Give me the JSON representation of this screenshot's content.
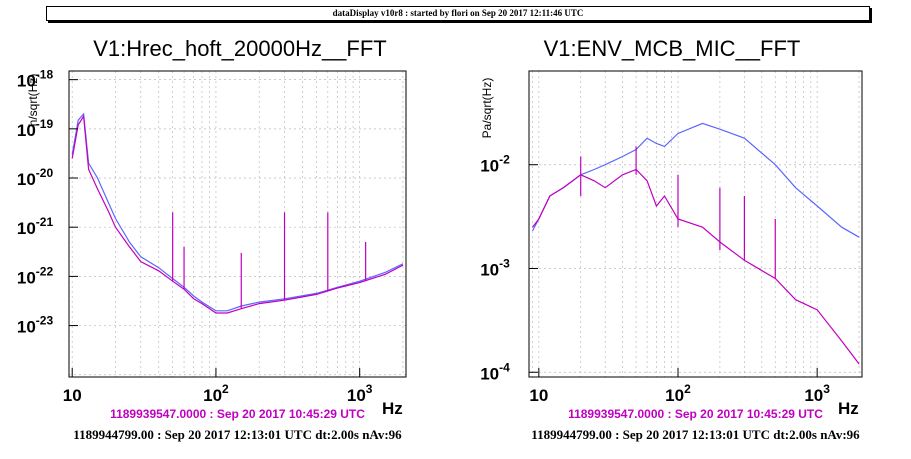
{
  "banner": "dataDisplay v10r8 : started by flori on Sep 20 2017 12:11:46 UTC",
  "colors": {
    "magenta": "#c000c0",
    "blue": "#5a66ff"
  },
  "chart_data": [
    {
      "type": "line",
      "title": "V1:Hrec_hoft_20000Hz__FFT",
      "ylabel": "h/sqrt(Hz)",
      "xlabel": "Hz",
      "xscale": "log",
      "yscale": "log",
      "xlim": [
        9.5,
        2100
      ],
      "ylim": [
        9e-25,
        1.5e-18
      ],
      "x_ticks": [
        10,
        100,
        1000
      ],
      "x_tick_labels": [
        "10",
        "10",
        "10"
      ],
      "x_tick_exps": [
        "",
        "2",
        "3"
      ],
      "y_ticks": [
        1e-23,
        1e-22,
        1e-21,
        1e-20,
        1e-19,
        1e-18
      ],
      "y_tick_labels": [
        "10",
        "10",
        "10",
        "10",
        "10",
        "10"
      ],
      "y_tick_exps": [
        "-23",
        "-22",
        "-21",
        "-20",
        "-19",
        "-18"
      ],
      "grid": true,
      "series": [
        {
          "color": "#5a66ff",
          "x": [
            10,
            11,
            12,
            13,
            15,
            18,
            20,
            25,
            30,
            40,
            50,
            60,
            70,
            80,
            100,
            120,
            150,
            200,
            300,
            500,
            700,
            1000,
            1500,
            2000
          ],
          "y": [
            3e-20,
            1.5e-19,
            2e-19,
            2e-20,
            1e-20,
            3e-21,
            1.5e-21,
            5e-22,
            2.5e-22,
            1.5e-22,
            9e-23,
            6e-23,
            4e-23,
            3e-23,
            2e-23,
            2e-23,
            2.5e-23,
            3e-23,
            3.5e-23,
            4.5e-23,
            6e-23,
            8e-23,
            1.2e-22,
            1.8e-22
          ]
        },
        {
          "color": "#c000c0",
          "x": [
            10,
            11,
            12,
            13,
            15,
            18,
            20,
            25,
            30,
            40,
            50,
            60,
            70,
            80,
            100,
            120,
            150,
            200,
            300,
            500,
            700,
            1000,
            1500,
            2000
          ],
          "y": [
            2.5e-20,
            1.2e-19,
            1.8e-19,
            1.5e-20,
            6e-21,
            2e-21,
            1e-21,
            4e-22,
            2e-22,
            1.3e-22,
            8e-23,
            5.5e-23,
            3.5e-23,
            2.8e-23,
            1.8e-23,
            1.8e-23,
            2.2e-23,
            2.8e-23,
            3.3e-23,
            4.3e-23,
            5.8e-23,
            7.5e-23,
            1.1e-22,
            1.7e-22
          ]
        }
      ],
      "lines": [
        {
          "x": 50,
          "y": [
            8e-23,
            2e-21
          ]
        },
        {
          "x": 60,
          "y": [
            5.5e-23,
            4e-22
          ]
        },
        {
          "x": 150,
          "y": [
            2.2e-23,
            3e-22
          ]
        },
        {
          "x": 300,
          "y": [
            3.3e-23,
            2e-21
          ]
        },
        {
          "x": 600,
          "y": [
            5e-23,
            2e-21
          ]
        },
        {
          "x": 1100,
          "y": [
            8e-23,
            5e-22
          ]
        }
      ],
      "subtitle": "1189939547.0000 : Sep 20 2017 10:45:29 UTC",
      "footer": "1189944799.00 : Sep 20 2017 12:13:01 UTC dt:2.00s nAv:96"
    },
    {
      "type": "line",
      "title": "V1:ENV_MCB_MIC__FFT",
      "ylabel": "Pa/sqrt(Hz)",
      "xlabel": "Hz",
      "xscale": "log",
      "yscale": "log",
      "xlim": [
        8.5,
        2100
      ],
      "ylim": [
        9e-05,
        0.08
      ],
      "x_ticks": [
        10,
        100,
        1000
      ],
      "x_tick_labels": [
        "10",
        "10",
        "10"
      ],
      "x_tick_exps": [
        "",
        "2",
        "3"
      ],
      "y_ticks": [
        0.0001,
        0.001,
        0.01
      ],
      "y_tick_labels": [
        "10",
        "10",
        "10"
      ],
      "y_tick_exps": [
        "-4",
        "-3",
        "-2"
      ],
      "grid": true,
      "series": [
        {
          "color": "#5a66ff",
          "x": [
            9,
            10,
            12,
            15,
            20,
            25,
            30,
            40,
            50,
            60,
            70,
            80,
            100,
            150,
            200,
            300,
            500,
            700,
            1000,
            1500,
            2000
          ],
          "y": [
            0.0023,
            0.003,
            0.005,
            0.006,
            0.008,
            0.009,
            0.01,
            0.012,
            0.014,
            0.018,
            0.016,
            0.015,
            0.02,
            0.025,
            0.022,
            0.018,
            0.01,
            0.006,
            0.004,
            0.0025,
            0.002
          ]
        },
        {
          "color": "#c000c0",
          "x": [
            9,
            10,
            12,
            15,
            20,
            25,
            30,
            40,
            50,
            60,
            70,
            80,
            100,
            150,
            200,
            300,
            500,
            700,
            1000,
            1500,
            2000
          ],
          "y": [
            0.0025,
            0.003,
            0.005,
            0.006,
            0.008,
            0.007,
            0.006,
            0.008,
            0.009,
            0.007,
            0.004,
            0.005,
            0.003,
            0.0025,
            0.0018,
            0.0012,
            0.0008,
            0.0005,
            0.0004,
            0.0002,
            0.00012
          ]
        }
      ],
      "lines": [
        {
          "x": 20,
          "y": [
            0.005,
            0.012
          ]
        },
        {
          "x": 50,
          "y": [
            0.008,
            0.015
          ]
        },
        {
          "x": 100,
          "y": [
            0.0025,
            0.008
          ]
        },
        {
          "x": 200,
          "y": [
            0.0015,
            0.006
          ]
        },
        {
          "x": 300,
          "y": [
            0.0012,
            0.005
          ]
        },
        {
          "x": 500,
          "y": [
            0.0008,
            0.003
          ]
        }
      ],
      "subtitle": "1189939547.0000 : Sep 20 2017 10:45:29 UTC",
      "footer": "1189944799.00 : Sep 20 2017 12:13:01 UTC dt:2.00s nAv:96"
    }
  ]
}
